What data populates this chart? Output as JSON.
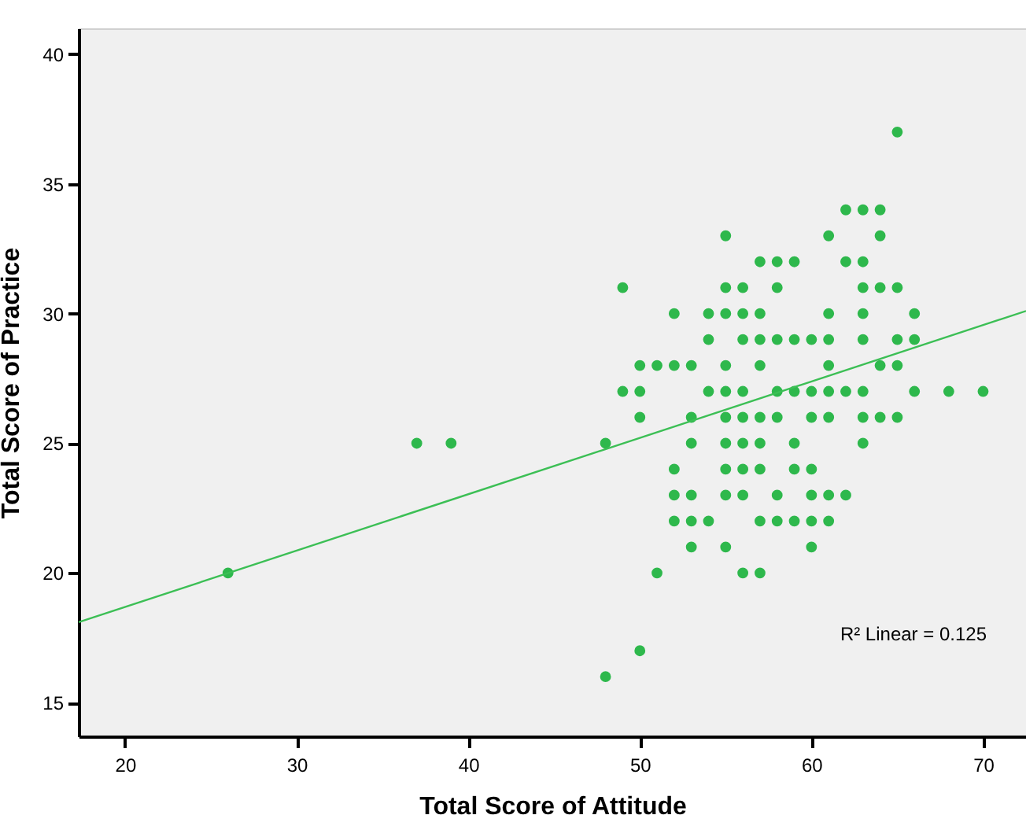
{
  "chart_data": {
    "type": "scatter",
    "xlabel": "Total Score of Attitude",
    "ylabel": "Total Score of Practice",
    "xlim": [
      17.3,
      72.5
    ],
    "ylim": [
      13.7,
      41
    ],
    "xticks": [
      20,
      30,
      40,
      50,
      60,
      70
    ],
    "yticks": [
      15,
      20,
      25,
      30,
      35,
      40
    ],
    "grid": false,
    "marker": "circle",
    "annotations": [
      "R² Linear = 0.125"
    ],
    "series": [
      {
        "color": "#2eb84c",
        "x": [
          65,
          62,
          63,
          64,
          55,
          61,
          64,
          57,
          58,
          59,
          62,
          63,
          49,
          55,
          56,
          58,
          63,
          64,
          65,
          52,
          54,
          55,
          56,
          57,
          61,
          63,
          66,
          54,
          56,
          57,
          58,
          59,
          60,
          61,
          63,
          65,
          66,
          50,
          51,
          52,
          53,
          55,
          57,
          61,
          64,
          65,
          49,
          50,
          54,
          55,
          56,
          58,
          59,
          60,
          61,
          62,
          63,
          66,
          68,
          70,
          50,
          53,
          55,
          56,
          57,
          58,
          60,
          61,
          63,
          64,
          65,
          37,
          39,
          48,
          53,
          55,
          56,
          57,
          59,
          63,
          52,
          55,
          56,
          57,
          59,
          60,
          52,
          53,
          55,
          56,
          58,
          60,
          61,
          62,
          52,
          53,
          54,
          57,
          58,
          59,
          60,
          61,
          53,
          55,
          60,
          26,
          51,
          56,
          57,
          50,
          48
        ],
        "values": [
          37,
          34,
          34,
          34,
          33,
          33,
          33,
          32,
          32,
          32,
          32,
          32,
          31,
          31,
          31,
          31,
          31,
          31,
          31,
          30,
          30,
          30,
          30,
          30,
          30,
          30,
          30,
          29,
          29,
          29,
          29,
          29,
          29,
          29,
          29,
          29,
          29,
          28,
          28,
          28,
          28,
          28,
          28,
          28,
          28,
          28,
          27,
          27,
          27,
          27,
          27,
          27,
          27,
          27,
          27,
          27,
          27,
          27,
          27,
          27,
          26,
          26,
          26,
          26,
          26,
          26,
          26,
          26,
          26,
          26,
          26,
          25,
          25,
          25,
          25,
          25,
          25,
          25,
          25,
          25,
          24,
          24,
          24,
          24,
          24,
          24,
          23,
          23,
          23,
          23,
          23,
          23,
          23,
          23,
          22,
          22,
          22,
          22,
          22,
          22,
          22,
          22,
          21,
          21,
          21,
          20,
          20,
          20,
          20,
          17,
          16
        ]
      },
      {
        "type": "line",
        "color": "#3cbf55",
        "line_style": "solid",
        "marker": "none",
        "x": [
          17.3,
          72.5
        ],
        "values": [
          18.1,
          30.1
        ]
      }
    ]
  }
}
